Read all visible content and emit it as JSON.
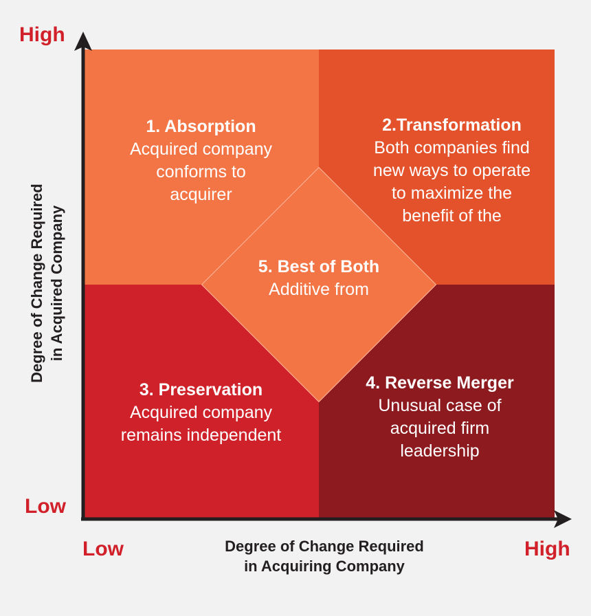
{
  "quadrants": {
    "top_left": {
      "title": "1. Absorption",
      "lines": [
        "Acquired company",
        "conforms to",
        "acquirer"
      ],
      "color": "#f37545"
    },
    "top_right": {
      "title": "2.Transformation",
      "lines": [
        "Both companies find",
        "new ways to operate",
        "to maximize the",
        "benefit of the"
      ],
      "color": "#e3522b"
    },
    "bottom_left": {
      "title": "3. Preservation",
      "lines": [
        "Acquired company",
        "remains independent"
      ],
      "color": "#cf2129"
    },
    "bottom_right": {
      "title": "4. Reverse Merger",
      "lines": [
        "Unusual case of",
        "acquired firm",
        "leadership"
      ],
      "color": "#8c1a1f"
    }
  },
  "center": {
    "title": "5. Best of Both",
    "lines": [
      "Additive from"
    ],
    "color": "#f37545"
  },
  "y_axis": {
    "high_label": "High",
    "low_label": "Low",
    "title_lines": [
      "Degree of Change Required",
      "in Acquired Company"
    ]
  },
  "x_axis": {
    "low_label": "Low",
    "high_label": "High",
    "title_lines": [
      "Degree of Change Required",
      "in Acquiring Company"
    ]
  },
  "colors": {
    "axis": "#231f20",
    "level_label": "#d1202a",
    "background": "#f2f2f2"
  }
}
